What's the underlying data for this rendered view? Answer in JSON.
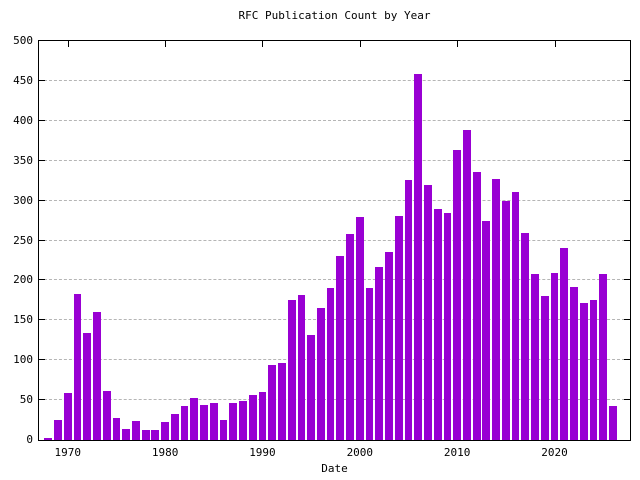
{
  "chart_data": {
    "type": "bar",
    "title": "RFC Publication Count by Year",
    "xlabel": "Date",
    "ylabel": "",
    "years": [
      1968,
      1969,
      1970,
      1971,
      1972,
      1973,
      1974,
      1975,
      1976,
      1977,
      1978,
      1979,
      1980,
      1981,
      1982,
      1983,
      1984,
      1985,
      1986,
      1987,
      1988,
      1989,
      1990,
      1991,
      1992,
      1993,
      1994,
      1995,
      1996,
      1997,
      1998,
      1999,
      2000,
      2001,
      2002,
      2003,
      2004,
      2005,
      2006,
      2007,
      2008,
      2009,
      2010,
      2011,
      2012,
      2013,
      2014,
      2015,
      2016,
      2017,
      2018,
      2019,
      2020,
      2021,
      2022,
      2023,
      2024,
      2025,
      2026
    ],
    "values": [
      3,
      25,
      59,
      183,
      134,
      161,
      62,
      27,
      14,
      24,
      12,
      12,
      23,
      33,
      42,
      53,
      44,
      46,
      25,
      46,
      49,
      56,
      60,
      94,
      96,
      176,
      182,
      132,
      166,
      191,
      230,
      258,
      280,
      191,
      217,
      235,
      281,
      326,
      459,
      320,
      290,
      285,
      363,
      389,
      336,
      275,
      327,
      300,
      311,
      259,
      208,
      180,
      209,
      241,
      192,
      172,
      175,
      208,
      42
    ],
    "yticks": [
      0,
      50,
      100,
      150,
      200,
      250,
      300,
      350,
      400,
      450,
      500
    ],
    "xticks": [
      1970,
      1980,
      1990,
      2000,
      2010,
      2020
    ],
    "ylim": [
      0,
      500
    ],
    "xlim": [
      1967.05,
      2027.75
    ],
    "bar_width_years": 0.8,
    "grid": "y-dashed",
    "legend": "none",
    "colors": {
      "bar": "#9900d3",
      "grid": "#b5b5b5",
      "axis": "#000000",
      "background": "#ffffff"
    }
  }
}
